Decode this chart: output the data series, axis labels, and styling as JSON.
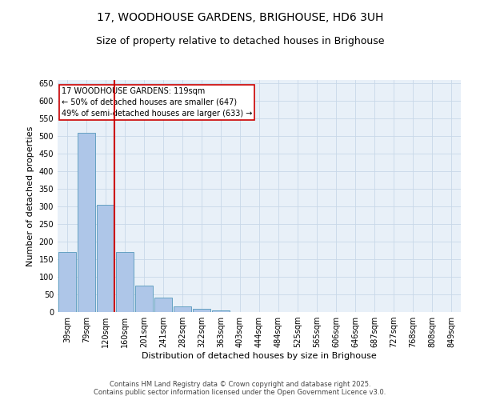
{
  "title_line1": "17, WOODHOUSE GARDENS, BRIGHOUSE, HD6 3UH",
  "title_line2": "Size of property relative to detached houses in Brighouse",
  "xlabel": "Distribution of detached houses by size in Brighouse",
  "ylabel": "Number of detached properties",
  "bar_labels": [
    "39sqm",
    "79sqm",
    "120sqm",
    "160sqm",
    "201sqm",
    "241sqm",
    "282sqm",
    "322sqm",
    "363sqm",
    "403sqm",
    "444sqm",
    "484sqm",
    "525sqm",
    "565sqm",
    "606sqm",
    "646sqm",
    "687sqm",
    "727sqm",
    "768sqm",
    "808sqm",
    "849sqm"
  ],
  "bar_values": [
    170,
    510,
    305,
    170,
    75,
    40,
    15,
    10,
    5,
    0,
    0,
    0,
    0,
    0,
    0,
    0,
    0,
    0,
    0,
    0,
    0
  ],
  "bar_color": "#aec6e8",
  "bar_edge_color": "#5599bb",
  "highlight_index": 2,
  "highlight_color": "#cc0000",
  "property_label": "17 WOODHOUSE GARDENS: 119sqm",
  "annotation_line1": "← 50% of detached houses are smaller (647)",
  "annotation_line2": "49% of semi-detached houses are larger (633) →",
  "ylim": [
    0,
    660
  ],
  "yticks": [
    0,
    50,
    100,
    150,
    200,
    250,
    300,
    350,
    400,
    450,
    500,
    550,
    600,
    650
  ],
  "footer_line1": "Contains HM Land Registry data © Crown copyright and database right 2025.",
  "footer_line2": "Contains public sector information licensed under the Open Government Licence v3.0.",
  "background_color": "#ffffff",
  "plot_bg_color": "#e8f0f8",
  "grid_color": "#c8d8e8",
  "annotation_box_color": "#ffffff",
  "annotation_box_edge": "#cc0000",
  "title1_fontsize": 10,
  "title2_fontsize": 9,
  "ylabel_fontsize": 8,
  "xlabel_fontsize": 8,
  "tick_fontsize": 7,
  "annotation_fontsize": 7,
  "footer_fontsize": 6
}
